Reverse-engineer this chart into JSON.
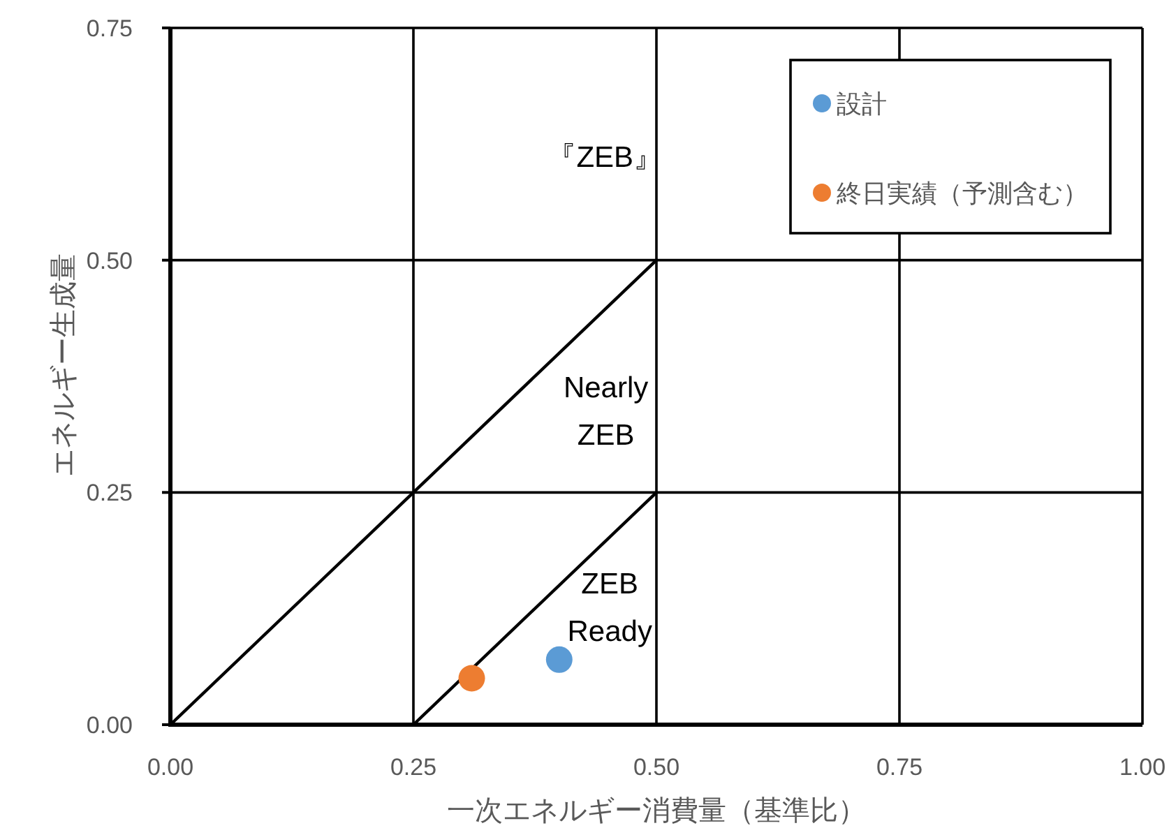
{
  "chart_data": {
    "type": "scatter",
    "xlabel": "一次エネルギー消費量（基準比）",
    "ylabel": "エネルギー生成量",
    "xlim": [
      0,
      1
    ],
    "ylim": [
      0,
      0.75
    ],
    "xticks": [
      {
        "value": 0,
        "label": "0.00"
      },
      0.25,
      {
        "value": 0.5,
        "label": "0.50"
      },
      0.75,
      {
        "value": 1,
        "label": "1.00"
      }
    ],
    "yticks": [
      {
        "value": 0,
        "label": "0.00"
      },
      0.25,
      {
        "value": 0.5,
        "label": "0.50"
      },
      0.75
    ],
    "grid": true,
    "legend": "top right",
    "series": [
      {
        "name": "設計",
        "type": "scatter",
        "color": "#5b9bd5",
        "marker": "circle",
        "x": [
          0.4
        ],
        "values": [
          0.07
        ]
      },
      {
        "name": "終日実績（予測含む）",
        "type": "scatter",
        "color": "#ed7d31",
        "marker": "circle",
        "x": [
          0.31
        ],
        "values": [
          0.05
        ]
      },
      {
        "type": "line",
        "color": "#000000",
        "line_style": "solid",
        "x": [
          0,
          0.5
        ],
        "values": [
          0,
          0.5
        ]
      },
      {
        "type": "line",
        "color": "#000000",
        "line_style": "solid",
        "x": [
          0.25,
          0.5
        ],
        "values": [
          0,
          0.25
        ]
      }
    ],
    "annotations": [
      "『ZEB』",
      "Nearly\nZEB",
      "ZEB\nReady"
    ]
  }
}
